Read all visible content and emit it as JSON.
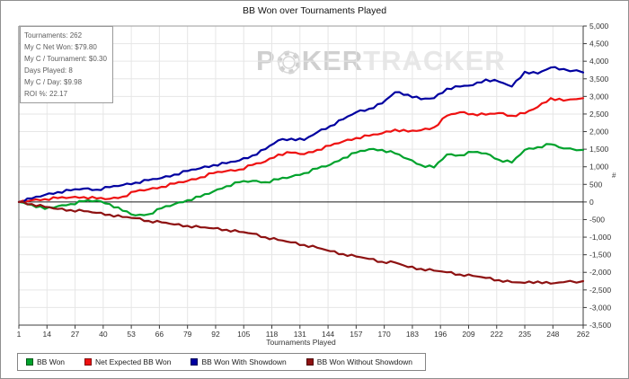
{
  "window": {
    "title": "BB Won over Tournaments Played"
  },
  "stats_panel": {
    "lines": [
      "Tournaments: 262",
      "My C Net Won: $79.80",
      "My C / Tournament: $0.30",
      "Days Played: 8",
      "My C / Day: $9.98",
      "ROI %: 22.17"
    ]
  },
  "watermark": {
    "part1": "P",
    "part2": "KER",
    "part3": "TRACKER"
  },
  "axes": {
    "y_unit": "#"
  },
  "colors": {
    "grid": "#e6e6e6",
    "frame_top": "#9a9a9a",
    "frame_left": "#6b6b6b",
    "axis_dark": "#3c3c3c",
    "zero_line": "#1a1a1a",
    "tick_label": "#333333"
  },
  "chart_data": {
    "type": "line",
    "title": "BB Won over Tournaments Played",
    "xlabel": "Tournaments Played",
    "ylabel": "",
    "grid": true,
    "legend_position": "bottom-left",
    "xlim": [
      1,
      262
    ],
    "ylim": [
      -3500,
      5000
    ],
    "x_ticks": [
      1,
      14,
      27,
      40,
      53,
      66,
      79,
      92,
      105,
      118,
      131,
      144,
      157,
      170,
      183,
      196,
      209,
      222,
      235,
      248,
      262
    ],
    "y_ticks": [
      5000,
      4500,
      4000,
      3500,
      3000,
      2500,
      2000,
      1500,
      1000,
      500,
      0,
      -500,
      -1000,
      -1500,
      -2000,
      -2500,
      -3000,
      -3500
    ],
    "x": [
      1,
      7,
      13,
      19,
      25,
      31,
      37,
      43,
      49,
      55,
      61,
      67,
      73,
      79,
      85,
      91,
      97,
      103,
      109,
      115,
      121,
      127,
      133,
      139,
      145,
      151,
      157,
      163,
      169,
      175,
      181,
      187,
      193,
      199,
      205,
      211,
      217,
      223,
      229,
      235,
      241,
      247,
      253,
      262
    ],
    "series": [
      {
        "name": "BB Won",
        "color": "#00a22c",
        "values": [
          0,
          -80,
          -200,
          -120,
          -60,
          20,
          40,
          -60,
          -250,
          -380,
          -350,
          -180,
          -60,
          50,
          150,
          300,
          450,
          560,
          600,
          560,
          640,
          720,
          820,
          950,
          1060,
          1250,
          1400,
          1500,
          1480,
          1380,
          1220,
          1050,
          980,
          1350,
          1330,
          1420,
          1380,
          1200,
          1120,
          1480,
          1560,
          1640,
          1520,
          1480
        ]
      },
      {
        "name": "Net Expected BB Won",
        "color": "#ee1111",
        "values": [
          0,
          50,
          80,
          110,
          130,
          140,
          100,
          90,
          150,
          300,
          360,
          430,
          520,
          600,
          700,
          820,
          880,
          920,
          1050,
          1150,
          1350,
          1400,
          1360,
          1480,
          1600,
          1720,
          1820,
          1880,
          1950,
          2060,
          2000,
          2040,
          2120,
          2450,
          2550,
          2500,
          2480,
          2530,
          2450,
          2520,
          2700,
          2950,
          2880,
          2950
        ]
      },
      {
        "name": "BB Won With Showdown",
        "color": "#0000a0",
        "values": [
          0,
          100,
          200,
          280,
          330,
          380,
          350,
          420,
          480,
          550,
          620,
          680,
          780,
          880,
          960,
          1050,
          1100,
          1180,
          1320,
          1500,
          1750,
          1800,
          1760,
          1980,
          2160,
          2350,
          2550,
          2650,
          2800,
          3120,
          3050,
          2920,
          2950,
          3220,
          3280,
          3320,
          3480,
          3420,
          3280,
          3700,
          3650,
          3820,
          3780,
          3680
        ]
      },
      {
        "name": "BB Won Without Showdown",
        "color": "#8e1212",
        "values": [
          0,
          -60,
          -140,
          -200,
          -230,
          -260,
          -310,
          -360,
          -430,
          -460,
          -540,
          -580,
          -640,
          -680,
          -720,
          -750,
          -790,
          -850,
          -900,
          -1000,
          -1080,
          -1150,
          -1220,
          -1300,
          -1400,
          -1480,
          -1550,
          -1620,
          -1700,
          -1720,
          -1850,
          -1900,
          -1950,
          -2000,
          -2060,
          -2100,
          -2160,
          -2220,
          -2280,
          -2300,
          -2260,
          -2320,
          -2280,
          -2250
        ]
      }
    ]
  }
}
